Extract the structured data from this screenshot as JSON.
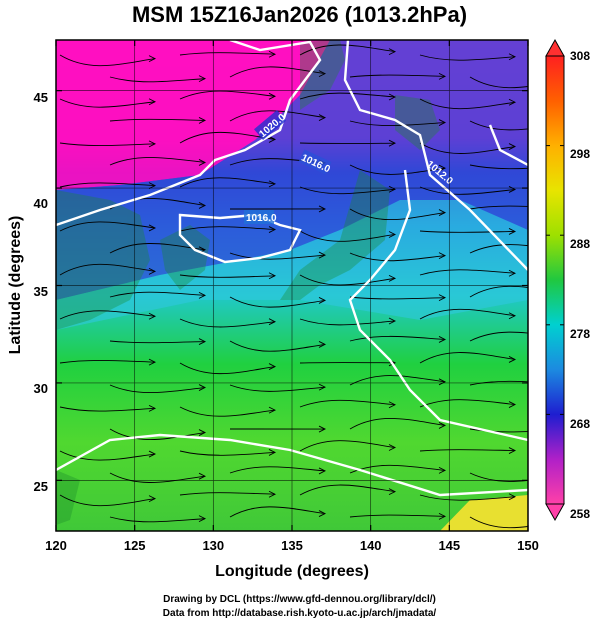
{
  "title": "MSM 15Z16Jan2026 (1013.2hPa)",
  "axes": {
    "xlabel": "Longitude (degrees)",
    "ylabel": "Latitude  (degrees)",
    "x_ticks": [
      "120",
      "125",
      "130",
      "135",
      "140",
      "145",
      "150"
    ],
    "y_ticks": [
      "25",
      "30",
      "35",
      "40",
      "45"
    ],
    "xlim": [
      120,
      150
    ],
    "ylim": [
      22.4,
      47.6
    ]
  },
  "colorbar": {
    "ticks": [
      "258",
      "268",
      "278",
      "288",
      "298",
      "308"
    ],
    "range": [
      258,
      308
    ],
    "colors": [
      "#ff3fa0",
      "#c020c0",
      "#2020d0",
      "#00c8d8",
      "#30d030",
      "#e8e000",
      "#ff8000",
      "#ff2020"
    ]
  },
  "isobars": [
    "1020.0",
    "1016.0",
    "1016.0",
    "1012.0"
  ],
  "credits": {
    "line1": "Drawing by DCL (https://www.gfd-dennou.org/library/dcl/)",
    "line2": "Data from http://database.rish.kyoto-u.ac.jp/arch/jmadata/"
  },
  "chart_data": {
    "type": "heatmap",
    "title": "MSM 15Z16Jan2026 (1013.2hPa)",
    "xlabel": "Longitude (degrees)",
    "ylabel": "Latitude  (degrees)",
    "xlim": [
      120,
      150
    ],
    "ylim": [
      22.4,
      47.6
    ],
    "color_range": [
      258,
      308
    ],
    "colorbar_ticks": [
      258,
      268,
      278,
      288,
      298,
      308
    ],
    "contour_labels": [
      "1020.0",
      "1016.0",
      "1016.0",
      "1012.0"
    ],
    "overlay": "streamlines",
    "grid": true
  }
}
